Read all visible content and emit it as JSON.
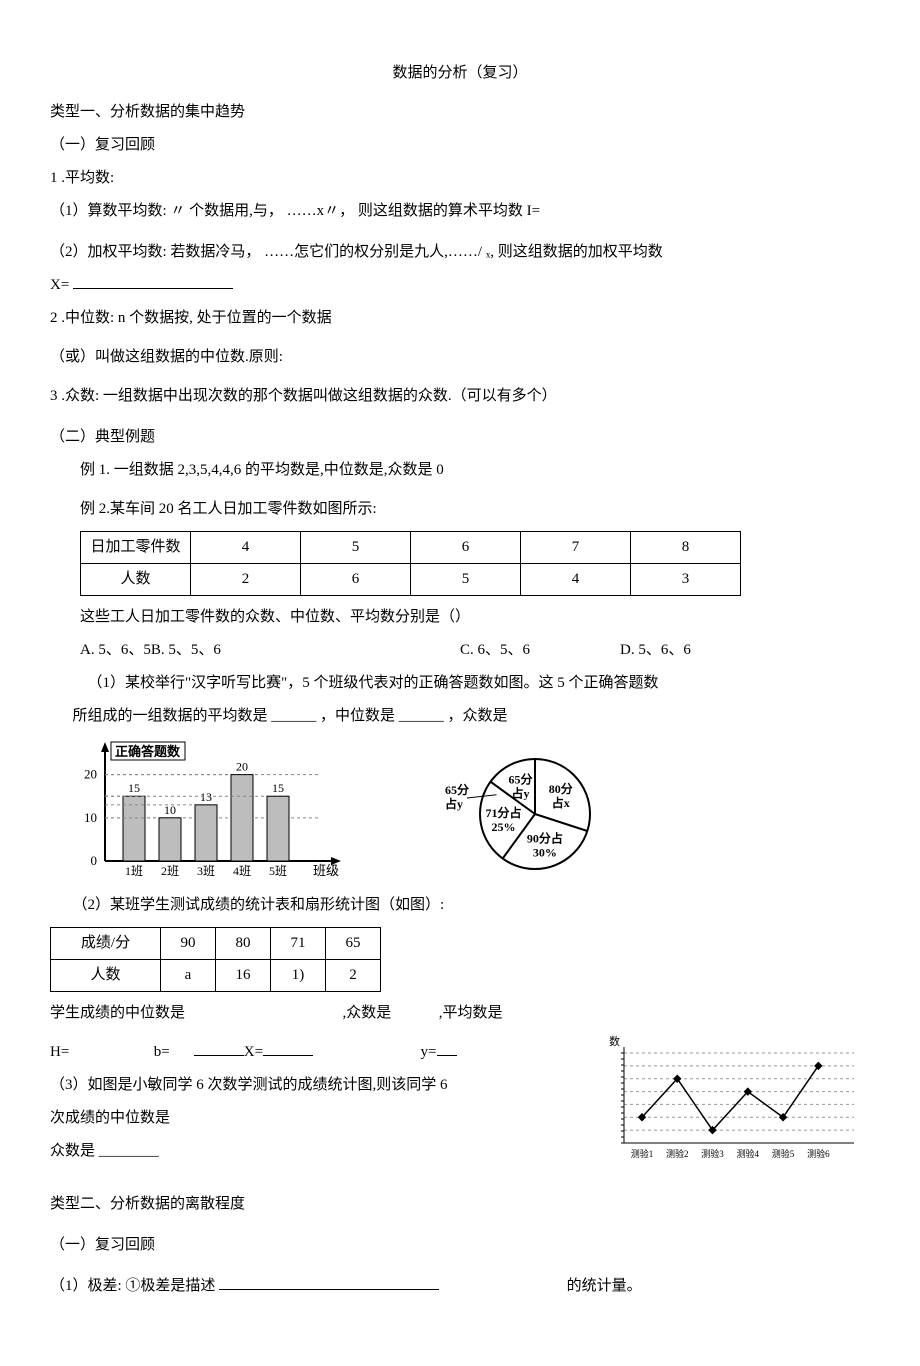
{
  "title": "数据的分析（复习）",
  "type1_header": "类型一、分析数据的集中趋势",
  "review_header": "（一）复习回顾",
  "mean_header": "1 .平均数:",
  "mean_arith": "（1）算数平均数:  〃 个数据用,与， ……x〃， 则这组数据的算术平均数 I=",
  "mean_weighted": "（2）加权平均数: 若数据冷马， ……怎它们的权分别是九人,……/ ₓ, 则这组数据的加权平均数",
  "mean_weighted_eq": "X=",
  "median_line1": "2 .中位数: n 个数据按, 处于位置的一个数据",
  "median_line2": "（或）叫做这组数据的中位数.原则:",
  "mode_line": "3 .众数: 一组数据中出现次数的那个数据叫做这组数据的众数.（可以有多个）",
  "examples_header": "（二）典型例题",
  "ex1": "例 1. 一组数据 2,3,5,4,4,6 的平均数是,中位数是,众数是 0",
  "ex2": "例 2.某车间 20 名工人日加工零件数如图所示:",
  "table1": {
    "headers": [
      "日加工零件数",
      "4",
      "5",
      "6",
      "7",
      "8"
    ],
    "row": [
      "人数",
      "2",
      "6",
      "5",
      "4",
      "3"
    ]
  },
  "ex2_q": "这些工人日加工零件数的众数、中位数、平均数分别是（）",
  "choices": {
    "a": "A. 5、6、5",
    "b": "B. 5、5、6",
    "c": "C. 6、5、6",
    "d": "D. 5、6、6"
  },
  "q1_text": "（1）某校举行\"汉字听写比赛\"，5 个班级代表对的正确答题数如图。这 5 个正确答题数",
  "q1_cont": "所组成的一组数据的平均数是 ______ ，中位数是 ______ ，众数是",
  "bar_chart": {
    "y_label": "正确答题数",
    "x_label": "班级",
    "categories": [
      "1班",
      "2班",
      "3班",
      "4班",
      "5班"
    ],
    "values": [
      15,
      10,
      13,
      20,
      15
    ],
    "value_labels": [
      "15",
      "10",
      "13",
      "20",
      "15"
    ],
    "y_ticks": [
      0,
      10,
      20
    ],
    "bar_color": "#bdbdbd",
    "border_color": "#000000",
    "grid_color": "#888888"
  },
  "pie_chart": {
    "slices": [
      {
        "label": "80分",
        "sub": "占x",
        "pct": 30,
        "start": -90
      },
      {
        "label": "90分占",
        "sub": "30%",
        "pct": 30,
        "start": 18
      },
      {
        "label": "71分占",
        "sub": "25%",
        "pct": 25,
        "start": 126
      },
      {
        "label": "65分",
        "sub": "占y",
        "pct": 15,
        "start": 216
      }
    ],
    "stroke": "#000000"
  },
  "q2_text": "（2）某班学生测试成绩的统计表和扇形统计图（如图）:",
  "table2": {
    "r1": [
      "成绩/分",
      "90",
      "80",
      "71",
      "65"
    ],
    "r2": [
      "人数",
      "a",
      "16",
      "1)",
      "2"
    ]
  },
  "q2_line2": "学生成绩的中位数是",
  "q2_line2b": ",众数是",
  "q2_line2c": ",平均数是",
  "q2_vars": {
    "h": "H=",
    "b": "b=",
    "x": "X=",
    "y": "y="
  },
  "q3_text": "（3）如图是小敏同学 6 次数学测试的成绩统计图,则该同学 6",
  "q3_cont": "次成绩的中位数是",
  "q3_mode": "众数是 ________",
  "line_chart": {
    "categories": [
      "测验1",
      "测验2",
      "测验3",
      "测验4",
      "测验5",
      "测验6"
    ],
    "values": [
      70,
      85,
      65,
      80,
      70,
      90
    ],
    "y_range": [
      60,
      95
    ],
    "grid_rows": 8,
    "y_label": "数",
    "line_color": "#000000",
    "grid_color": "#999999"
  },
  "type2_header": "类型二、分析数据的离散程度",
  "review2": "（一）复习回顾",
  "range_line": "（1）极差: ①极差是描述",
  "range_end": "的统计量。"
}
